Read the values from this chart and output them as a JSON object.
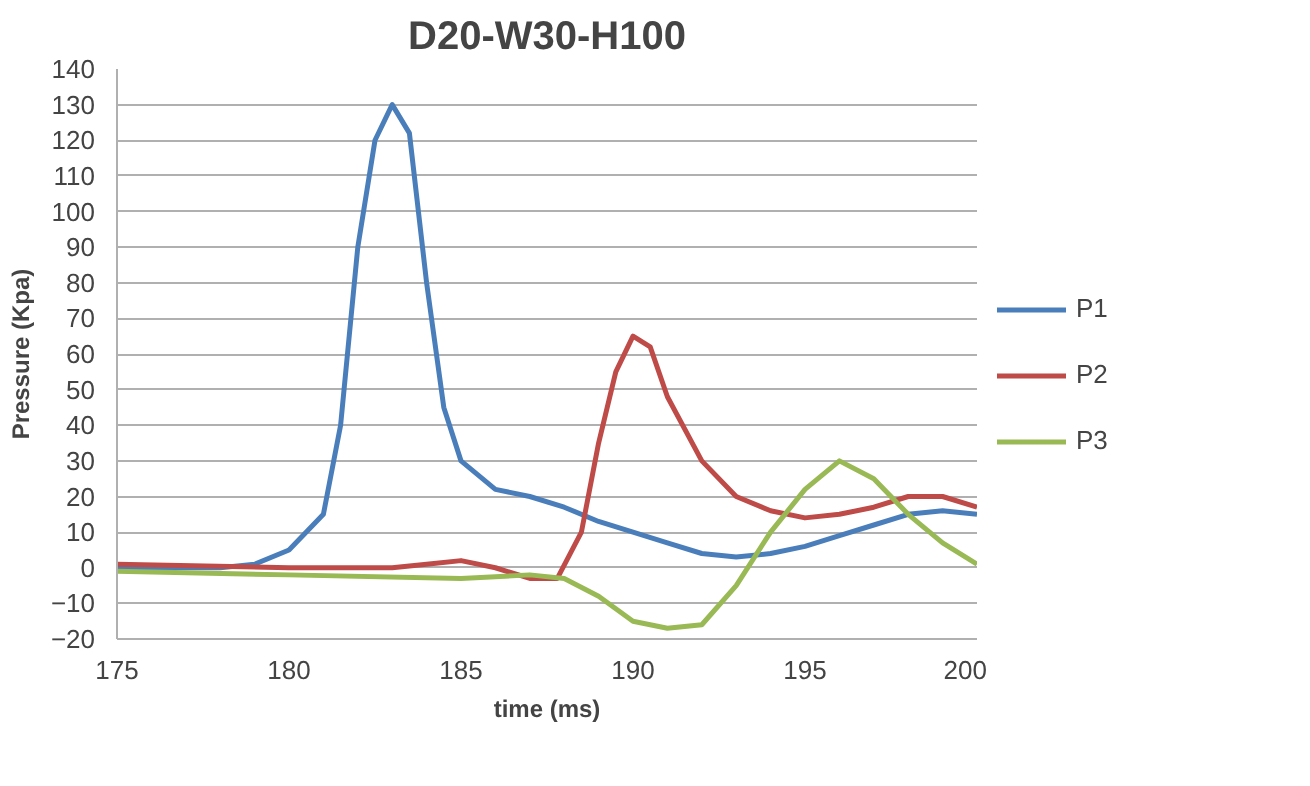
{
  "chart_data": {
    "type": "line",
    "title": "D20-W30-H100",
    "xlabel": "time (ms)",
    "ylabel": "Pressure (Kpa)",
    "xlim": [
      175,
      200
    ],
    "xticks": [
      175,
      180,
      185,
      190,
      195,
      200
    ],
    "ylim": [
      -20,
      140
    ],
    "yticks": [
      -20,
      -10,
      0,
      10,
      20,
      30,
      40,
      50,
      60,
      70,
      80,
      90,
      100,
      110,
      120,
      130,
      140
    ],
    "grid": "y",
    "legend": "right",
    "line_style": "solid",
    "marker": "none",
    "series": [
      {
        "name": "P1",
        "color": "#4a7ebb",
        "x": [
          175,
          178,
          179,
          180,
          181,
          181.5,
          182,
          182.5,
          183,
          183.5,
          184,
          184.5,
          185,
          186,
          187,
          188,
          189,
          190,
          191,
          192,
          193,
          194,
          195,
          196,
          197,
          198,
          199,
          200
        ],
        "values": [
          0,
          0,
          1,
          5,
          15,
          40,
          90,
          120,
          130,
          122,
          80,
          45,
          30,
          22,
          20,
          17,
          13,
          10,
          7,
          4,
          3,
          4,
          6,
          9,
          12,
          15,
          16,
          15
        ]
      },
      {
        "name": "P2",
        "color": "#be4b48",
        "x": [
          175,
          180,
          183,
          184,
          185,
          186,
          187,
          187.8,
          188.5,
          189,
          189.5,
          190,
          190.5,
          191,
          192,
          193,
          194,
          195,
          196,
          197,
          198,
          199,
          200
        ],
        "values": [
          1,
          0,
          0,
          1,
          2,
          0,
          -3,
          -3,
          10,
          35,
          55,
          65,
          62,
          48,
          30,
          20,
          16,
          14,
          15,
          17,
          20,
          20,
          17
        ]
      },
      {
        "name": "P3",
        "color": "#98b954",
        "x": [
          175,
          180,
          185,
          187,
          188,
          189,
          190,
          191,
          192,
          193,
          194,
          195,
          196,
          197,
          198,
          199,
          200
        ],
        "values": [
          -1,
          -2,
          -3,
          -2,
          -3,
          -8,
          -15,
          -17,
          -16,
          -5,
          10,
          22,
          30,
          25,
          15,
          7,
          1
        ]
      }
    ]
  }
}
